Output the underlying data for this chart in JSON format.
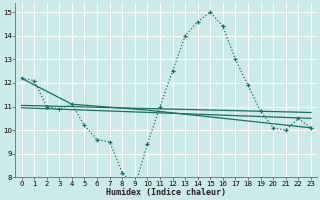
{
  "title": "",
  "xlabel": "Humidex (Indice chaleur)",
  "bg_color": "#cceaea",
  "grid_color": "#ffffff",
  "line_color": "#1a6e5e",
  "xlim": [
    -0.5,
    23.5
  ],
  "ylim": [
    8,
    15.4
  ],
  "xticks": [
    0,
    1,
    2,
    3,
    4,
    5,
    6,
    7,
    8,
    9,
    10,
    11,
    12,
    13,
    14,
    15,
    16,
    17,
    18,
    19,
    20,
    21,
    22,
    23
  ],
  "yticks": [
    8,
    9,
    10,
    11,
    12,
    13,
    14,
    15
  ],
  "series1_x": [
    0,
    1,
    2,
    3,
    4,
    5,
    6,
    7,
    8,
    9,
    10,
    11,
    12,
    13,
    14,
    15,
    16,
    17,
    18,
    19,
    20,
    21,
    22,
    23
  ],
  "series1_y": [
    12.2,
    12.1,
    11.0,
    10.9,
    11.1,
    10.2,
    9.6,
    9.5,
    8.2,
    7.6,
    9.4,
    11.0,
    12.5,
    14.0,
    14.6,
    15.0,
    14.4,
    13.0,
    11.9,
    10.8,
    10.1,
    10.0,
    10.5,
    10.1
  ],
  "series2_x": [
    0,
    4,
    10,
    23
  ],
  "series2_y": [
    12.2,
    11.1,
    10.85,
    10.1
  ],
  "series3_x": [
    0,
    23
  ],
  "series3_y": [
    11.05,
    10.75
  ],
  "series4_x": [
    0,
    23
  ],
  "series4_y": [
    10.95,
    10.5
  ]
}
